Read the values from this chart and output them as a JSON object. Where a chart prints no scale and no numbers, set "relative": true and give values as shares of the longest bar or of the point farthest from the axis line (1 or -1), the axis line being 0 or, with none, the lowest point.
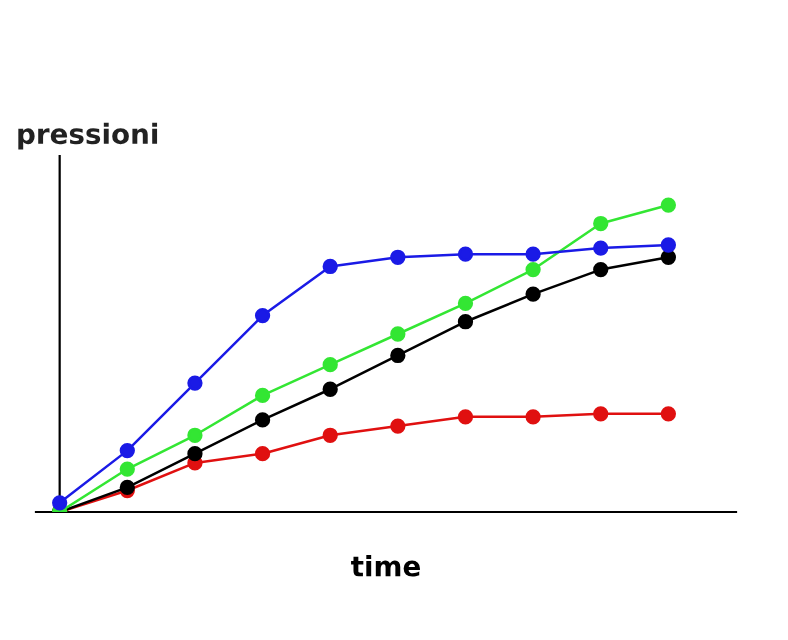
{
  "chart_data": {
    "type": "line",
    "xlabel": "time",
    "ylabel": "pressioni",
    "relative": true,
    "marker": "circle",
    "line_style": "solid",
    "legend": false,
    "categories": [
      null,
      null,
      null,
      null,
      null,
      null,
      null,
      null,
      null,
      null
    ],
    "series": [
      {
        "color": "#1a1ae6",
        "values": [
          0.03,
          0.2,
          0.42,
          0.64,
          0.8,
          0.83,
          0.84,
          0.84,
          0.86,
          0.87
        ]
      },
      {
        "color": "#33e633",
        "values": [
          0,
          0.14,
          0.25,
          0.38,
          0.48,
          0.58,
          0.68,
          0.79,
          0.94,
          1
        ]
      },
      {
        "color": "#000000",
        "values": [
          0,
          0.08,
          0.19,
          0.3,
          0.4,
          0.51,
          0.62,
          0.71,
          0.79,
          0.83
        ]
      },
      {
        "color": "#e01010",
        "values": [
          0,
          0.07,
          0.16,
          0.19,
          0.25,
          0.28,
          0.31,
          0.31,
          0.32,
          0.32
        ]
      }
    ]
  }
}
